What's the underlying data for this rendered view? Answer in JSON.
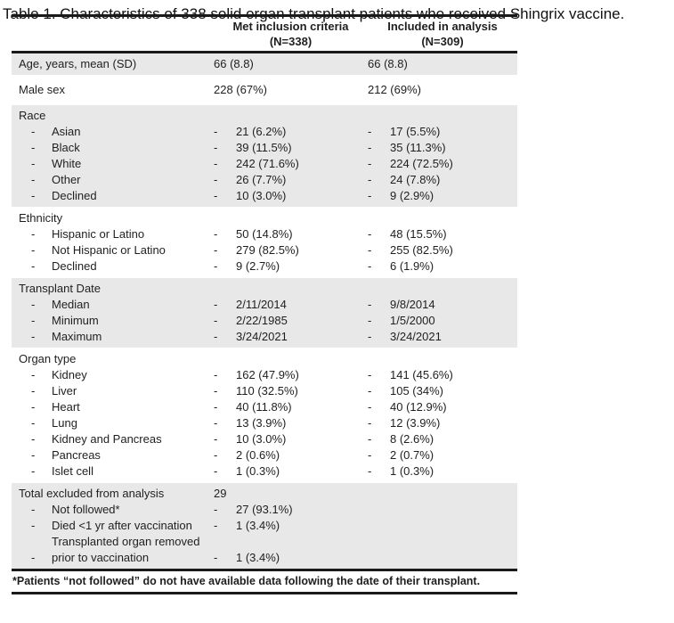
{
  "table": {
    "header": {
      "met_criteria_line1": "Met inclusion criteria",
      "met_criteria_line2": "(N=338)",
      "included_line1": "Included in analysis",
      "included_line2": "(N=309)"
    },
    "sections": [
      {
        "shaded": true,
        "rows": [
          {
            "label": "Age, years, mean (SD)",
            "indent": false,
            "met": {
              "dash": false,
              "text": "66 (8.8)"
            },
            "incl": {
              "dash": false,
              "text": "66 (8.8)"
            }
          }
        ]
      },
      {
        "shaded": false,
        "tall": true,
        "rows": [
          {
            "label": "Male sex",
            "indent": false,
            "met": {
              "dash": false,
              "text": "228 (67%)"
            },
            "incl": {
              "dash": false,
              "text": "212 (69%)"
            }
          }
        ]
      },
      {
        "shaded": true,
        "rows": [
          {
            "label": "Race",
            "indent": false
          },
          {
            "label": "Asian",
            "indent": true,
            "met": {
              "dash": true,
              "text": "21 (6.2%)"
            },
            "incl": {
              "dash": true,
              "text": "17 (5.5%)"
            }
          },
          {
            "label": "Black",
            "indent": true,
            "met": {
              "dash": true,
              "text": "39 (11.5%)"
            },
            "incl": {
              "dash": true,
              "text": "35 (11.3%)"
            }
          },
          {
            "label": "White",
            "indent": true,
            "met": {
              "dash": true,
              "text": "242 (71.6%)"
            },
            "incl": {
              "dash": true,
              "text": "224 (72.5%)"
            }
          },
          {
            "label": "Other",
            "indent": true,
            "met": {
              "dash": true,
              "text": "26 (7.7%)"
            },
            "incl": {
              "dash": true,
              "text": "24 (7.8%)"
            }
          },
          {
            "label": "Declined",
            "indent": true,
            "met": {
              "dash": true,
              "text": "10 (3.0%)"
            },
            "incl": {
              "dash": true,
              "text": "9 (2.9%)"
            }
          }
        ]
      },
      {
        "shaded": false,
        "rows": [
          {
            "label": "Ethnicity",
            "indent": false
          },
          {
            "label": "Hispanic or Latino",
            "indent": true,
            "met": {
              "dash": true,
              "text": "50 (14.8%)"
            },
            "incl": {
              "dash": true,
              "text": "48 (15.5%)"
            }
          },
          {
            "label": "Not Hispanic or Latino",
            "indent": true,
            "met": {
              "dash": true,
              "text": "279 (82.5%)"
            },
            "incl": {
              "dash": true,
              "text": "255 (82.5%)"
            }
          },
          {
            "label": "Declined",
            "indent": true,
            "met": {
              "dash": true,
              "text": "9 (2.7%)"
            },
            "incl": {
              "dash": true,
              "text": "6 (1.9%)"
            }
          }
        ]
      },
      {
        "shaded": true,
        "rows": [
          {
            "label": "Transplant Date",
            "indent": false
          },
          {
            "label": "Median",
            "indent": true,
            "met": {
              "dash": true,
              "text": "2/11/2014"
            },
            "incl": {
              "dash": true,
              "text": "9/8/2014"
            }
          },
          {
            "label": "Minimum",
            "indent": true,
            "met": {
              "dash": true,
              "text": "2/22/1985"
            },
            "incl": {
              "dash": true,
              "text": "1/5/2000"
            }
          },
          {
            "label": "Maximum",
            "indent": true,
            "met": {
              "dash": true,
              "text": "3/24/2021"
            },
            "incl": {
              "dash": true,
              "text": "3/24/2021"
            }
          }
        ]
      },
      {
        "shaded": false,
        "rows": [
          {
            "label": "Organ type",
            "indent": false
          },
          {
            "label": "Kidney",
            "indent": true,
            "met": {
              "dash": true,
              "text": "162 (47.9%)"
            },
            "incl": {
              "dash": true,
              "text": "141 (45.6%)"
            }
          },
          {
            "label": "Liver",
            "indent": true,
            "met": {
              "dash": true,
              "text": "110 (32.5%)"
            },
            "incl": {
              "dash": true,
              "text": "105 (34%)"
            }
          },
          {
            "label": "Heart",
            "indent": true,
            "met": {
              "dash": true,
              "text": "40 (11.8%)"
            },
            "incl": {
              "dash": true,
              "text": "40 (12.9%)"
            }
          },
          {
            "label": "Lung",
            "indent": true,
            "met": {
              "dash": true,
              "text": "13 (3.9%)"
            },
            "incl": {
              "dash": true,
              "text": "12 (3.9%)"
            }
          },
          {
            "label": "Kidney and Pancreas",
            "indent": true,
            "met": {
              "dash": true,
              "text": "10 (3.0%)"
            },
            "incl": {
              "dash": true,
              "text": "8 (2.6%)"
            }
          },
          {
            "label": "Pancreas",
            "indent": true,
            "met": {
              "dash": true,
              "text": "2 (0.6%)"
            },
            "incl": {
              "dash": true,
              "text": "2 (0.7%)"
            }
          },
          {
            "label": "Islet cell",
            "indent": true,
            "met": {
              "dash": true,
              "text": "1 (0.3%)"
            },
            "incl": {
              "dash": true,
              "text": "1 (0.3%)"
            }
          }
        ]
      },
      {
        "shaded": true,
        "rows": [
          {
            "label": "Total excluded from analysis",
            "indent": false,
            "met": {
              "dash": false,
              "text": "29"
            }
          },
          {
            "label": "Not followed*",
            "indent": true,
            "met": {
              "dash": true,
              "text": "27 (93.1%)"
            }
          },
          {
            "label": "Died <1 yr after vaccination",
            "indent": true,
            "met": {
              "dash": true,
              "text": "1 (3.4%)"
            }
          },
          {
            "label": "Transplanted organ removed prior to vaccination",
            "indent": true,
            "met": {
              "dash": true,
              "text": "1 (3.4%)"
            }
          }
        ]
      }
    ],
    "footnote": "*Patients “not followed” do not have available data following the date of their transplant."
  },
  "caption": "Table 1. Characteristics of 338 solid organ transplant patients who received Shingrix vaccine.",
  "colors": {
    "row_shade": "#e8e8e8",
    "rule": "#1a1a1a",
    "text": "#1f1f1f"
  }
}
